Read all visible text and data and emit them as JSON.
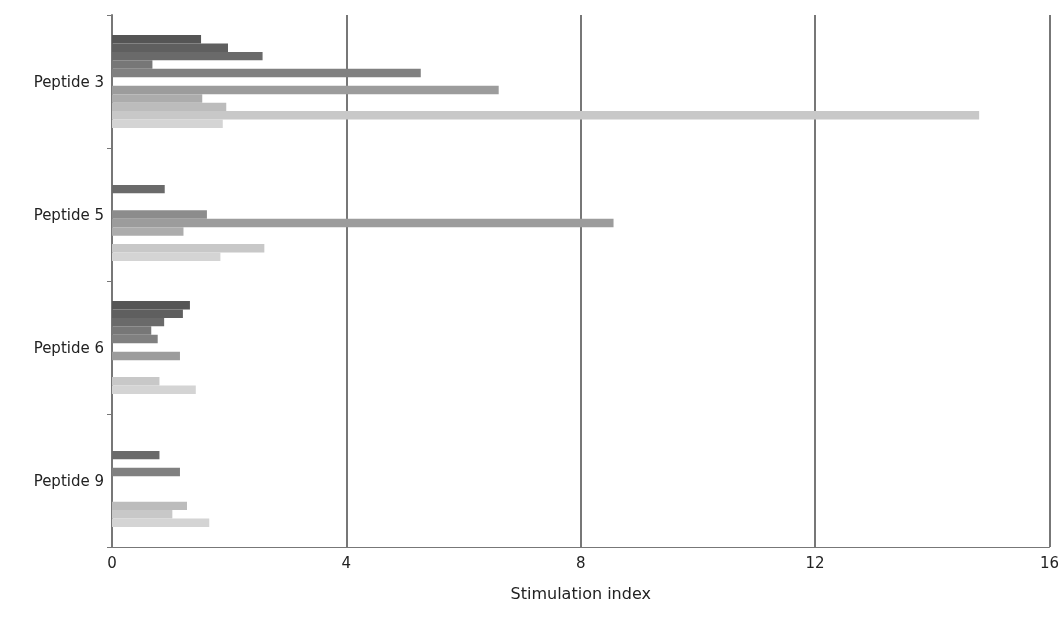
{
  "chart_data": {
    "type": "bar",
    "orientation": "horizontal",
    "xlabel": "Stimulation index",
    "categories": [
      "Peptide 3",
      "Peptide 5",
      "Peptide 6",
      "Peptide 9"
    ],
    "series": [
      {
        "color": "#555555",
        "values": [
          1.52,
          null,
          1.33,
          null
        ]
      },
      {
        "color": "#5f5f5f",
        "values": [
          1.98,
          null,
          1.21,
          null
        ]
      },
      {
        "color": "#6a6a6a",
        "values": [
          2.57,
          0.9,
          0.89,
          0.81
        ]
      },
      {
        "color": "#777777",
        "values": [
          0.69,
          null,
          0.67,
          null
        ]
      },
      {
        "color": "#808080",
        "values": [
          5.27,
          null,
          0.78,
          1.16
        ]
      },
      {
        "color": "#8c8c8c",
        "values": [
          null,
          1.62,
          null,
          null
        ]
      },
      {
        "color": "#9c9c9c",
        "values": [
          6.6,
          8.56,
          1.16,
          null
        ]
      },
      {
        "color": "#acacac",
        "values": [
          1.54,
          1.22,
          null,
          null
        ]
      },
      {
        "color": "#bcbcbc",
        "values": [
          1.95,
          null,
          null,
          1.28
        ]
      },
      {
        "color": "#c8c8c8",
        "values": [
          14.8,
          2.6,
          0.81,
          1.03
        ]
      },
      {
        "color": "#d4d4d4",
        "values": [
          1.89,
          1.85,
          1.43,
          1.66
        ]
      }
    ],
    "xlim": [
      0,
      16
    ],
    "xticks": [
      0,
      4,
      8,
      12,
      16
    ],
    "grid": "x"
  }
}
